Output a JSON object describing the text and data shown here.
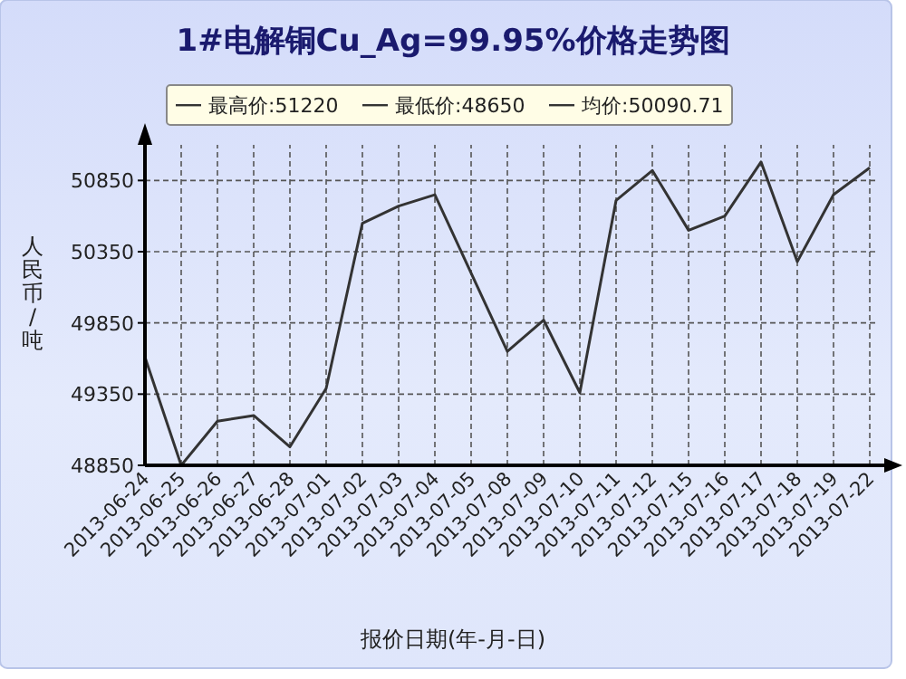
{
  "chart_data": {
    "type": "line",
    "title": "1#电解铜Cu_Ag=99.95%价格走势图",
    "xlabel": "报价日期(年-月-日)",
    "ylabel": "人民币/吨",
    "annotations": [
      "最高价:51220",
      "最低价:48650",
      "均价:50090.71"
    ],
    "categories": [
      "2013-06-24",
      "2013-06-25",
      "2013-06-26",
      "2013-06-27",
      "2013-06-28",
      "2013-07-01",
      "2013-07-02",
      "2013-07-03",
      "2013-07-04",
      "2013-07-05",
      "2013-07-08",
      "2013-07-09",
      "2013-07-10",
      "2013-07-11",
      "2013-07-12",
      "2013-07-15",
      "2013-07-16",
      "2013-07-17",
      "2013-07-18",
      "2013-07-19",
      "2013-07-22"
    ],
    "series": [
      {
        "color": "#333333",
        "values": [
          49610,
          48850,
          49160,
          49200,
          48980,
          49390,
          50550,
          50670,
          50750,
          50200,
          49650,
          49870,
          49360,
          50710,
          50920,
          50500,
          50600,
          50980,
          50280,
          50750,
          50940
        ]
      }
    ],
    "ylim": [
      48850,
      51100
    ],
    "yticks": [
      48850,
      49350,
      49850,
      50350,
      50850
    ],
    "grid": true,
    "marker": "none",
    "line_style": "solid"
  }
}
